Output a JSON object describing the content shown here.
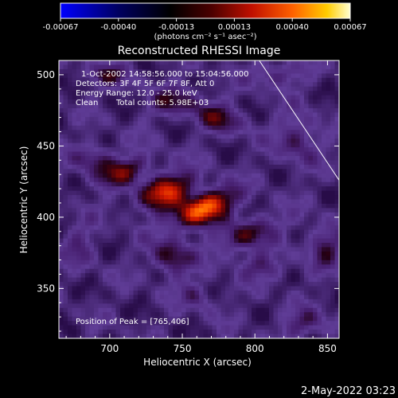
{
  "chart_data": {
    "type": "heatmap",
    "title": "Reconstructed RHESSI Image",
    "xlabel": "Heliocentric X (arcsec)",
    "ylabel": "Heliocentric Y (arcsec)",
    "xlim": [
      665,
      858
    ],
    "ylim": [
      315,
      510
    ],
    "x_ticks": [
      700,
      750,
      800,
      850
    ],
    "y_ticks": [
      350,
      400,
      450,
      500
    ],
    "colorbar": {
      "range": [
        -0.00067,
        0.00067
      ],
      "ticks": [
        "-0.00067",
        "-0.00040",
        "-0.00013",
        "0.00013",
        "0.00040",
        "0.00067"
      ],
      "unit_label": "(photons cm⁻² s⁻¹ asec⁻²)",
      "colormap": [
        "#0000ff",
        "#000040",
        "#3a0a4a",
        "#8b1010",
        "#e83000",
        "#ff9a00",
        "#ffff80",
        "#ffffff"
      ]
    },
    "annotations": {
      "time_range": "1-Oct-2002 14:58:56.000 to 15:04:56.000",
      "detectors": "Detectors: 3F 4F 5F 6F 7F 8F, Att 0",
      "energy_range": "Energy Range: 12.0 - 25.0 keV",
      "clean": "Clean",
      "total_counts": "Total counts: 5.98E+03",
      "peak_position": "Position of Peak = [765,406]"
    },
    "peak": [
      765,
      406
    ],
    "limb_line": [
      [
        803,
        510
      ],
      [
        858,
        426
      ]
    ]
  },
  "footer_timestamp": "2-May-2022 03:23"
}
